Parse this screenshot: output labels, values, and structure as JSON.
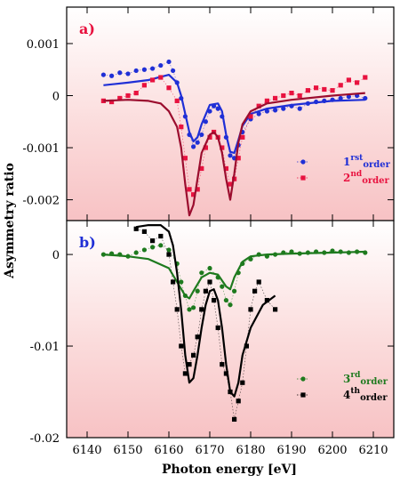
{
  "figure": {
    "ylabel": "Asymmetry ratio",
    "xlabel": "Photon energy [eV]",
    "x_ticks": [
      "6140",
      "6150",
      "6160",
      "6170",
      "6180",
      "6190",
      "6200",
      "6210"
    ],
    "colors": {
      "bg_outer": "#ffffff",
      "bg_inner": "#f9c9ca",
      "first": "#1f2fd6",
      "second": "#e8123f",
      "second_line": "#9b0d2e",
      "third": "#1e7a1e",
      "fourth": "#000000"
    }
  },
  "chart_data": [
    {
      "type": "line",
      "panel_label": "a)",
      "xlim": [
        6135,
        6215
      ],
      "ylim": [
        -0.0024,
        0.0017
      ],
      "y_ticks": [
        {
          "value": 0.001,
          "label": "0.001"
        },
        {
          "value": 0.0,
          "label": "0"
        },
        {
          "value": -0.001,
          "label": "-0.001"
        },
        {
          "value": -0.002,
          "label": "-0.002"
        }
      ],
      "legend": [
        {
          "base": "1",
          "sup": "rst",
          "sub": "order",
          "color_key": "first"
        },
        {
          "base": "2",
          "sup": "nd",
          "sub": "order",
          "color_key": "second"
        }
      ],
      "series": [
        {
          "name": "1rst order",
          "marker": "circle",
          "color_key": "first",
          "x": [
            6144,
            6146,
            6148,
            6150,
            6152,
            6154,
            6156,
            6158,
            6160,
            6161,
            6162,
            6163,
            6164,
            6165,
            6166,
            6167,
            6168,
            6169,
            6170,
            6171,
            6172,
            6173,
            6174,
            6175,
            6176,
            6177,
            6178,
            6180,
            6182,
            6184,
            6186,
            6188,
            6190,
            6192,
            6194,
            6196,
            6198,
            6200,
            6202,
            6204,
            6206,
            6208
          ],
          "y": [
            0.0004,
            0.00038,
            0.00044,
            0.00042,
            0.00048,
            0.0005,
            0.00052,
            0.00058,
            0.00065,
            0.00048,
            0.00025,
            -5e-05,
            -0.0004,
            -0.00075,
            -0.00098,
            -0.0009,
            -0.00075,
            -0.0005,
            -0.0003,
            -0.0002,
            -0.00025,
            -0.0004,
            -0.0008,
            -0.00115,
            -0.0012,
            -0.00095,
            -0.0007,
            -0.00045,
            -0.00035,
            -0.0003,
            -0.00028,
            -0.00025,
            -0.0002,
            -0.00025,
            -0.00015,
            -0.00012,
            -0.0001,
            -8e-05,
            -5e-05,
            -2e-05,
            0.0,
            -5e-05
          ]
        },
        {
          "name": "1rst order fit",
          "line": true,
          "color_key": "first",
          "x": [
            6144,
            6150,
            6155,
            6160,
            6162,
            6163,
            6164,
            6165,
            6166,
            6167,
            6168,
            6170,
            6172,
            6173,
            6174,
            6175,
            6176,
            6177,
            6178,
            6180,
            6184,
            6190,
            6200,
            6208
          ],
          "y": [
            0.0002,
            0.00025,
            0.0003,
            0.0004,
            0.00025,
            0.0,
            -0.00035,
            -0.0007,
            -0.00088,
            -0.0008,
            -0.00055,
            -0.00018,
            -0.00015,
            -0.0003,
            -0.00075,
            -0.00108,
            -0.0011,
            -0.00085,
            -0.00058,
            -0.00035,
            -0.00025,
            -0.00018,
            -0.0001,
            -8e-05
          ]
        },
        {
          "name": "2nd order",
          "marker": "square",
          "color_key": "second",
          "x": [
            6144,
            6146,
            6148,
            6150,
            6152,
            6154,
            6156,
            6158,
            6160,
            6162,
            6163,
            6164,
            6165,
            6166,
            6167,
            6168,
            6169,
            6170,
            6171,
            6172,
            6173,
            6174,
            6175,
            6176,
            6177,
            6178,
            6180,
            6182,
            6184,
            6186,
            6188,
            6190,
            6192,
            6194,
            6196,
            6198,
            6200,
            6202,
            6204,
            6206,
            6208
          ],
          "y": [
            -0.0001,
            -0.00012,
            -5e-05,
            0.0,
            5e-05,
            0.0002,
            0.0003,
            0.00035,
            0.00015,
            -0.0001,
            -0.0006,
            -0.0012,
            -0.0018,
            -0.0019,
            -0.0018,
            -0.0014,
            -0.001,
            -0.0008,
            -0.0007,
            -0.0008,
            -0.001,
            -0.0014,
            -0.0017,
            -0.0016,
            -0.0012,
            -0.0008,
            -0.0004,
            -0.0002,
            -0.0001,
            -5e-05,
            0.0,
            5e-05,
            0.0,
            0.0001,
            0.00015,
            0.00012,
            0.0001,
            0.0002,
            0.0003,
            0.00025,
            0.00035
          ]
        },
        {
          "name": "2nd order fit",
          "line": true,
          "color_key": "second_line",
          "x": [
            6144,
            6150,
            6155,
            6158,
            6160,
            6162,
            6163,
            6164,
            6165,
            6166,
            6167,
            6168,
            6170,
            6171,
            6172,
            6173,
            6174,
            6175,
            6176,
            6177,
            6178,
            6180,
            6184,
            6190,
            6200,
            6208
          ],
          "y": [
            -0.0001,
            -8e-05,
            -0.0001,
            -0.00015,
            -0.0003,
            -0.0006,
            -0.001,
            -0.0017,
            -0.0023,
            -0.0021,
            -0.0016,
            -0.0011,
            -0.00075,
            -0.0007,
            -0.0008,
            -0.0011,
            -0.0016,
            -0.002,
            -0.0015,
            -0.0009,
            -0.00055,
            -0.0003,
            -0.00015,
            -8e-05,
            0.0,
            5e-05
          ]
        }
      ]
    },
    {
      "type": "line",
      "panel_label": "b)",
      "xlim": [
        6135,
        6215
      ],
      "ylim": [
        -0.02,
        0.0037
      ],
      "y_ticks": [
        {
          "value": 0.0,
          "label": "0"
        },
        {
          "value": -0.01,
          "label": "-0.01"
        },
        {
          "value": -0.02,
          "label": "-0.02"
        }
      ],
      "legend": [
        {
          "base": "3",
          "sup": "rd",
          "sub": "order",
          "color_key": "third"
        },
        {
          "base": "4",
          "sup": "th",
          "sub": "order",
          "color_key": "fourth"
        }
      ],
      "series": [
        {
          "name": "3rd order",
          "marker": "circle",
          "color_key": "third",
          "x": [
            6144,
            6146,
            6148,
            6150,
            6152,
            6154,
            6156,
            6158,
            6160,
            6162,
            6163,
            6164,
            6165,
            6166,
            6167,
            6168,
            6170,
            6172,
            6173,
            6174,
            6175,
            6176,
            6177,
            6178,
            6180,
            6182,
            6184,
            6186,
            6188,
            6190,
            6192,
            6194,
            6196,
            6198,
            6200,
            6202,
            6204,
            6206,
            6208
          ],
          "y": [
            0.0,
            0.0001,
            0.0,
            -0.0002,
            0.0002,
            0.0005,
            0.0008,
            0.001,
            0.0005,
            -0.001,
            -0.003,
            -0.0045,
            -0.006,
            -0.0058,
            -0.004,
            -0.002,
            -0.0015,
            -0.0025,
            -0.0035,
            -0.005,
            -0.0055,
            -0.004,
            -0.002,
            -0.001,
            -0.0005,
            0.0,
            -0.0002,
            0.0,
            0.0002,
            0.0003,
            0.0001,
            0.0002,
            0.0003,
            0.0002,
            0.0004,
            0.0003,
            0.0002,
            0.0003,
            0.0002
          ]
        },
        {
          "name": "3rd order fit",
          "line": true,
          "color_key": "third",
          "x": [
            6144,
            6150,
            6155,
            6160,
            6162,
            6164,
            6165,
            6166,
            6168,
            6170,
            6172,
            6174,
            6175,
            6176,
            6178,
            6180,
            6184,
            6190,
            6200,
            6208
          ],
          "y": [
            0.0,
            -0.0002,
            -0.0005,
            -0.0015,
            -0.003,
            -0.0045,
            -0.0048,
            -0.004,
            -0.0025,
            -0.002,
            -0.0022,
            -0.0035,
            -0.0038,
            -0.0025,
            -0.0008,
            -0.0002,
            0.0,
            0.0001,
            0.0002,
            0.0003
          ]
        },
        {
          "name": "4th order",
          "marker": "square",
          "color_key": "fourth",
          "x": [
            6152,
            6154,
            6156,
            6158,
            6160,
            6161,
            6162,
            6163,
            6164,
            6165,
            6166,
            6167,
            6168,
            6169,
            6170,
            6171,
            6172,
            6173,
            6174,
            6175,
            6176,
            6177,
            6178,
            6179,
            6180,
            6181,
            6182,
            6184,
            6186
          ],
          "y": [
            0.0028,
            0.0025,
            0.0015,
            0.002,
            0.0,
            -0.003,
            -0.006,
            -0.01,
            -0.013,
            -0.012,
            -0.011,
            -0.009,
            -0.006,
            -0.004,
            -0.003,
            -0.005,
            -0.008,
            -0.012,
            -0.013,
            -0.015,
            -0.018,
            -0.016,
            -0.014,
            -0.01,
            -0.006,
            -0.004,
            -0.003,
            -0.005,
            -0.006
          ]
        },
        {
          "name": "4th order fit",
          "line": true,
          "color_key": "fourth",
          "x": [
            6152,
            6155,
            6158,
            6160,
            6161,
            6162,
            6163,
            6164,
            6165,
            6166,
            6167,
            6168,
            6169,
            6170,
            6171,
            6172,
            6173,
            6174,
            6175,
            6176,
            6177,
            6178,
            6180,
            6183,
            6186
          ],
          "y": [
            0.003,
            0.0032,
            0.0032,
            0.0025,
            0.001,
            -0.002,
            -0.006,
            -0.011,
            -0.014,
            -0.0135,
            -0.011,
            -0.008,
            -0.0055,
            -0.004,
            -0.0038,
            -0.005,
            -0.008,
            -0.012,
            -0.015,
            -0.0155,
            -0.014,
            -0.011,
            -0.008,
            -0.0055,
            -0.0045
          ]
        }
      ]
    }
  ]
}
